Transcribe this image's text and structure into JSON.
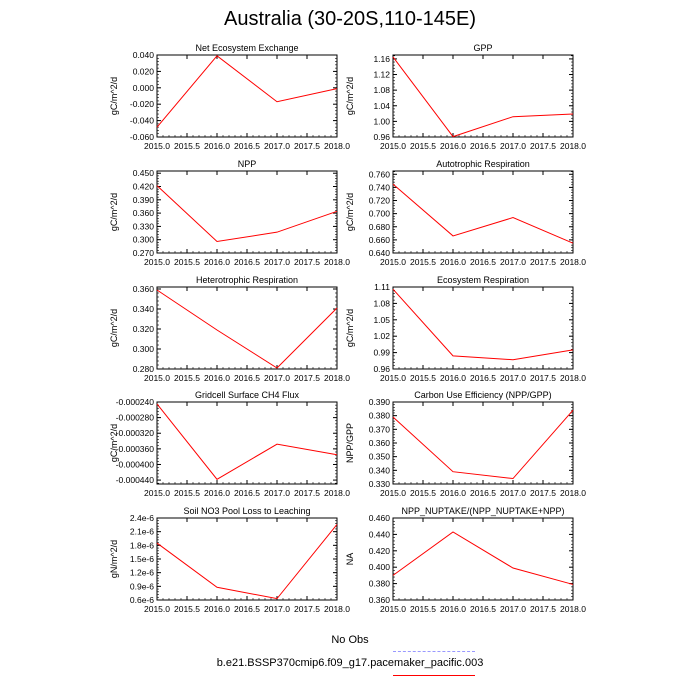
{
  "title": "Australia (30-20S,110-145E)",
  "colors": {
    "model": "#ff0000",
    "obs": "#9999ff",
    "axis": "#000000"
  },
  "xticks": [
    "2015.0",
    "2015.5",
    "2016.0",
    "2016.5",
    "2017.0",
    "2017.5",
    "2018.0"
  ],
  "chart_data": [
    {
      "type": "line",
      "title": "Net Ecosystem Exchange",
      "ylabel": "gC/m^2/d",
      "xlim": [
        2015.0,
        2018.0
      ],
      "ylim": [
        -0.06,
        0.04
      ],
      "yticks": [
        "-0.060",
        "-0.040",
        "-0.020",
        "0.000",
        "0.020",
        "0.040"
      ],
      "ytick_values": [
        -0.06,
        -0.04,
        -0.02,
        0.0,
        0.02,
        0.04
      ],
      "x": [
        2015.0,
        2016.0,
        2017.0,
        2018.0
      ],
      "y": [
        -0.048,
        0.039,
        -0.017,
        -0.001
      ]
    },
    {
      "type": "line",
      "title": "GPP",
      "ylabel": "gC/m^2/d",
      "xlim": [
        2015.0,
        2018.0
      ],
      "ylim": [
        0.96,
        1.17
      ],
      "yticks": [
        "0.96",
        "1.00",
        "1.04",
        "1.08",
        "1.12",
        "1.16"
      ],
      "ytick_values": [
        0.96,
        1.0,
        1.04,
        1.08,
        1.12,
        1.16
      ],
      "x": [
        2015.0,
        2016.0,
        2017.0,
        2018.0
      ],
      "y": [
        1.165,
        0.961,
        1.012,
        1.019
      ]
    },
    {
      "type": "line",
      "title": "NPP",
      "ylabel": "gC/m^2/d",
      "xlim": [
        2015.0,
        2018.0
      ],
      "ylim": [
        0.27,
        0.455
      ],
      "yticks": [
        "0.270",
        "0.300",
        "0.330",
        "0.360",
        "0.390",
        "0.420",
        "0.450"
      ],
      "ytick_values": [
        0.27,
        0.3,
        0.33,
        0.36,
        0.39,
        0.42,
        0.45
      ],
      "x": [
        2015.0,
        2016.0,
        2017.0,
        2018.0
      ],
      "y": [
        0.422,
        0.296,
        0.317,
        0.364
      ]
    },
    {
      "type": "line",
      "title": "Autotrophic Respiration",
      "ylabel": "gC/m^2/d",
      "xlim": [
        2015.0,
        2018.0
      ],
      "ylim": [
        0.64,
        0.765
      ],
      "yticks": [
        "0.640",
        "0.660",
        "0.680",
        "0.700",
        "0.720",
        "0.740",
        "0.760"
      ],
      "ytick_values": [
        0.64,
        0.66,
        0.68,
        0.7,
        0.72,
        0.74,
        0.76
      ],
      "x": [
        2015.0,
        2016.0,
        2017.0,
        2018.0
      ],
      "y": [
        0.745,
        0.666,
        0.694,
        0.655
      ]
    },
    {
      "type": "line",
      "title": "Heterotrophic Respiration",
      "ylabel": "gC/m^2/d",
      "xlim": [
        2015.0,
        2018.0
      ],
      "ylim": [
        0.28,
        0.362
      ],
      "yticks": [
        "0.280",
        "0.300",
        "0.320",
        "0.340",
        "0.360"
      ],
      "ytick_values": [
        0.28,
        0.3,
        0.32,
        0.34,
        0.36
      ],
      "x": [
        2015.0,
        2016.0,
        2017.0,
        2018.0
      ],
      "y": [
        0.359,
        0.319,
        0.281,
        0.341
      ]
    },
    {
      "type": "line",
      "title": "Ecosystem Respiration",
      "ylabel": "gC/m^2/d",
      "xlim": [
        2015.0,
        2018.0
      ],
      "ylim": [
        0.96,
        1.11
      ],
      "yticks": [
        "0.96",
        "0.99",
        "1.02",
        "1.05",
        "1.08",
        "1.11"
      ],
      "ytick_values": [
        0.96,
        0.99,
        1.02,
        1.05,
        1.08,
        1.11
      ],
      "x": [
        2015.0,
        2016.0,
        2017.0,
        2018.0
      ],
      "y": [
        1.106,
        0.984,
        0.977,
        0.995
      ]
    },
    {
      "type": "line",
      "title": "Gridcell Surface CH4 Flux",
      "ylabel": "gC/m^2/d",
      "xlim": [
        2015.0,
        2018.0
      ],
      "ylim": [
        -0.00045,
        -0.00024
      ],
      "yticks": [
        "-0.000440",
        "-0.000400",
        "-0.000360",
        "-0.000320",
        "-0.000280",
        "-0.000240"
      ],
      "ytick_values": [
        -0.00044,
        -0.0004,
        -0.00036,
        -0.00032,
        -0.00028,
        -0.00024
      ],
      "x": [
        2015.0,
        2016.0,
        2017.0,
        2018.0
      ],
      "y": [
        -0.000245,
        -0.000438,
        -0.000348,
        -0.000375
      ]
    },
    {
      "type": "line",
      "title": "Carbon Use Efficiency (NPP/GPP)",
      "ylabel": "NPP/GPP",
      "xlim": [
        2015.0,
        2018.0
      ],
      "ylim": [
        0.33,
        0.39
      ],
      "yticks": [
        "0.330",
        "0.340",
        "0.350",
        "0.360",
        "0.370",
        "0.380",
        "0.390"
      ],
      "ytick_values": [
        0.33,
        0.34,
        0.35,
        0.36,
        0.37,
        0.38,
        0.39
      ],
      "x": [
        2015.0,
        2016.0,
        2017.0,
        2018.0
      ],
      "y": [
        0.379,
        0.339,
        0.334,
        0.384
      ]
    },
    {
      "type": "line",
      "title": "Soil NO3 Pool Loss to Leaching",
      "ylabel": "gN/m^2/d",
      "xlim": [
        2015.0,
        2018.0
      ],
      "ylim": [
        6e-07,
        2.4e-06
      ],
      "yticks": [
        "0.6e-6",
        "0.9e-6",
        "1.2e-6",
        "1.5e-6",
        "1.8e-6",
        "2.1e-6",
        "2.4e-6"
      ],
      "ytick_values": [
        6e-07,
        9e-07,
        1.2e-06,
        1.5e-06,
        1.8e-06,
        2.1e-06,
        2.4e-06
      ],
      "x": [
        2015.0,
        2016.0,
        2017.0,
        2018.0
      ],
      "y": [
        1.85e-06,
        8.8e-07,
        6.3e-07,
        2.26e-06
      ]
    },
    {
      "type": "line",
      "title": "NPP_NUPTAKE/(NPP_NUPTAKE+NPP)",
      "ylabel": "NA",
      "xlim": [
        2015.0,
        2018.0
      ],
      "ylim": [
        0.36,
        0.46
      ],
      "yticks": [
        "0.360",
        "0.380",
        "0.400",
        "0.420",
        "0.440",
        "0.460"
      ],
      "ytick_values": [
        0.36,
        0.38,
        0.4,
        0.42,
        0.44,
        0.46
      ],
      "x": [
        2015.0,
        2016.0,
        2017.0,
        2018.0
      ],
      "y": [
        0.39,
        0.443,
        0.399,
        0.379
      ]
    }
  ],
  "legend": {
    "obs_label": "No Obs",
    "model_label": "b.e21.BSSP370cmip6.f09_g17.pacemaker_pacific.003"
  }
}
